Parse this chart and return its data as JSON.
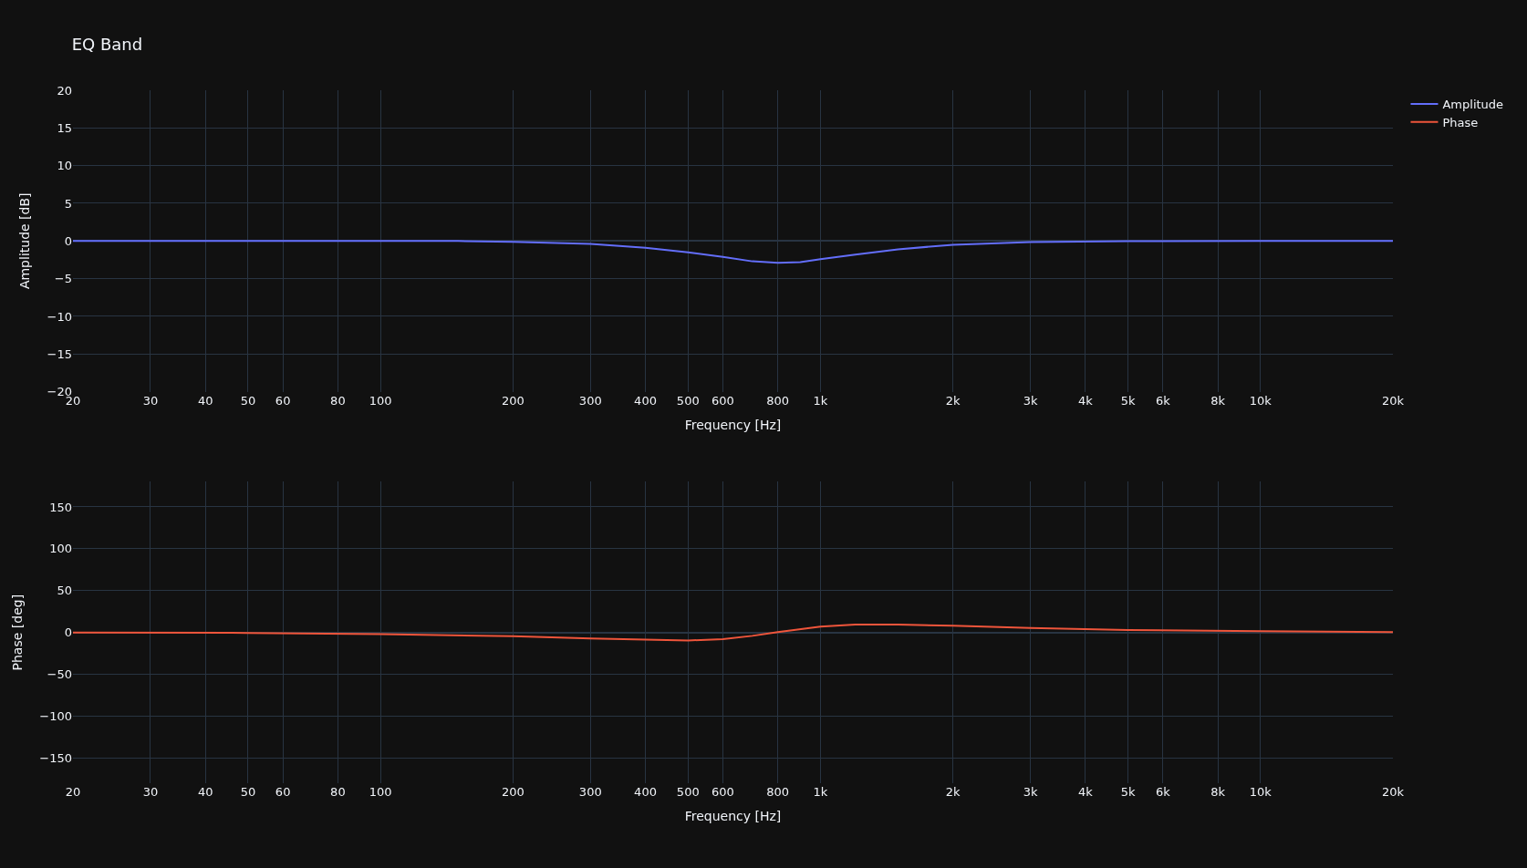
{
  "chart_data": [
    {
      "type": "line",
      "title": "EQ Band",
      "xlabel": "Frequency [Hz]",
      "ylabel": "Amplitude [dB]",
      "log": "x",
      "grid": true,
      "legend": "top right",
      "xlim": [
        20,
        20000
      ],
      "xticks": [
        20,
        30,
        40,
        50,
        60,
        80,
        100,
        200,
        300,
        400,
        500,
        600,
        800,
        {
          "value": 1000,
          "label": "1k"
        },
        {
          "value": 2000,
          "label": "2k"
        },
        {
          "value": 3000,
          "label": "3k"
        },
        {
          "value": 4000,
          "label": "4k"
        },
        {
          "value": 5000,
          "label": "5k"
        },
        {
          "value": 6000,
          "label": "6k"
        },
        {
          "value": 8000,
          "label": "8k"
        },
        {
          "value": 10000,
          "label": "10k"
        },
        {
          "value": 20000,
          "label": "20k"
        }
      ],
      "ylim": [
        -20,
        20
      ],
      "yticks": [
        -20,
        -15,
        -10,
        -5,
        0,
        5,
        10,
        15,
        20
      ],
      "x": [
        20,
        50,
        100,
        150,
        200,
        300,
        400,
        500,
        600,
        700,
        800,
        900,
        1000,
        1200,
        1500,
        2000,
        3000,
        5000,
        10000,
        20000
      ],
      "series": [
        {
          "name": "Amplitude",
          "color": "#636efa",
          "values": [
            0,
            0,
            0,
            0,
            -0.1,
            -0.4,
            -0.9,
            -1.5,
            -2.1,
            -2.7,
            -2.9,
            -2.8,
            -2.4,
            -1.8,
            -1.1,
            -0.5,
            -0.15,
            -0.03,
            0,
            0
          ]
        }
      ]
    },
    {
      "type": "line",
      "xlabel": "Frequency [Hz]",
      "ylabel": "Phase [deg]",
      "log": "x",
      "grid": true,
      "legend": "top right",
      "xlim": [
        20,
        20000
      ],
      "xticks": [
        20,
        30,
        40,
        50,
        60,
        80,
        100,
        200,
        300,
        400,
        500,
        600,
        800,
        {
          "value": 1000,
          "label": "1k"
        },
        {
          "value": 2000,
          "label": "2k"
        },
        {
          "value": 3000,
          "label": "3k"
        },
        {
          "value": 4000,
          "label": "4k"
        },
        {
          "value": 5000,
          "label": "5k"
        },
        {
          "value": 6000,
          "label": "6k"
        },
        {
          "value": 8000,
          "label": "8k"
        },
        {
          "value": 10000,
          "label": "10k"
        },
        {
          "value": 20000,
          "label": "20k"
        }
      ],
      "ylim": [
        -180,
        180
      ],
      "yticks": [
        -150,
        -100,
        -50,
        0,
        50,
        100,
        150
      ],
      "x": [
        20,
        50,
        100,
        200,
        300,
        400,
        500,
        600,
        700,
        800,
        1000,
        1200,
        1500,
        2000,
        3000,
        5000,
        10000,
        20000
      ],
      "series": [
        {
          "name": "Phase",
          "color": "#ef553b",
          "values": [
            0,
            -0.5,
            -2,
            -4.5,
            -7,
            -8.5,
            -9.5,
            -8,
            -4,
            0.5,
            7,
            9.5,
            9.5,
            8,
            5.5,
            3,
            1.5,
            0.5
          ]
        }
      ]
    }
  ]
}
